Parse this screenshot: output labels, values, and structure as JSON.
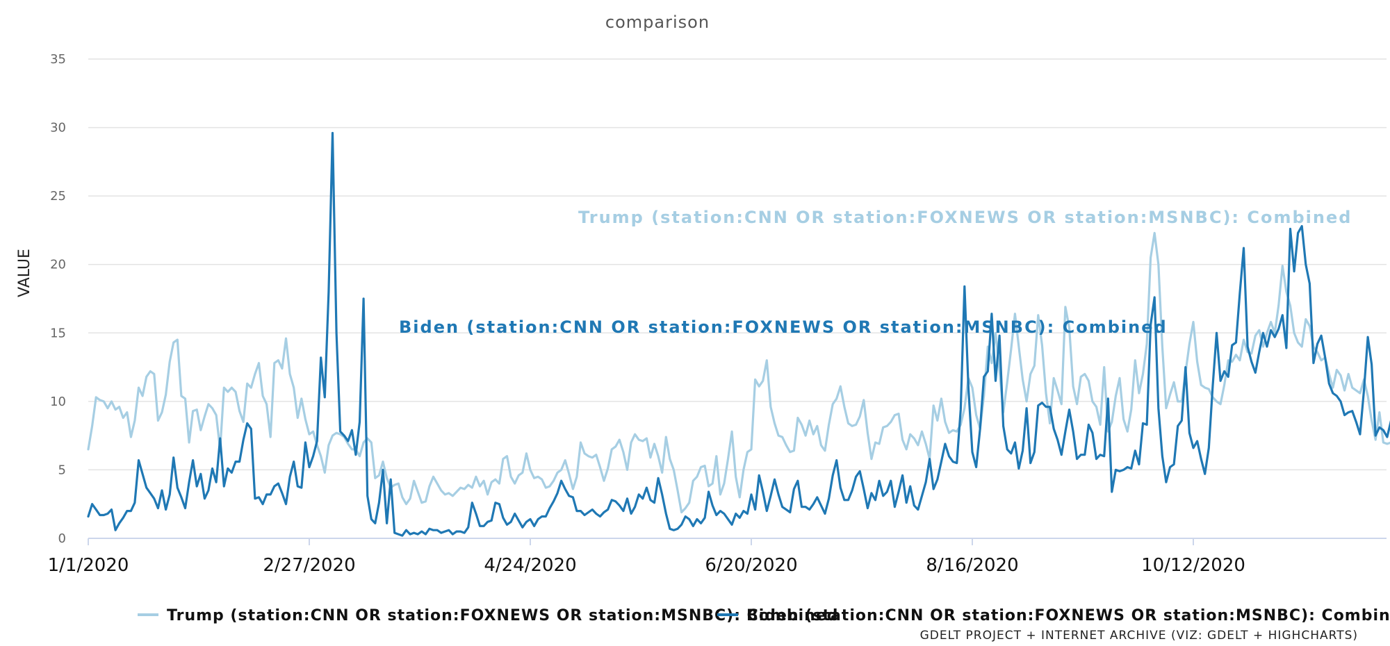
{
  "chart_data": {
    "type": "line",
    "title": "comparison",
    "xlabel": "",
    "ylabel": "VALUE",
    "ylim": [
      0,
      35
    ],
    "yticks": [
      "0",
      "5",
      "10",
      "15",
      "20",
      "25",
      "30",
      "35"
    ],
    "x_tick_labels": [
      "1/1/2020",
      "2/27/2020",
      "4/24/2020",
      "6/20/2020",
      "8/16/2020",
      "10/12/2020"
    ],
    "x_start": "1/1/2020",
    "x_step_days": 1,
    "legend_position": "bottom",
    "credits": "GDELT PROJECT + INTERNET ARCHIVE (VIZ: GDELT + HIGHCHARTS)",
    "series": [
      {
        "name": "Trump (station:CNN OR station:FOXNEWS OR station:MSNBC): Combined",
        "color": "#a6cee3",
        "annotation": "Trump (station:CNN OR station:FOXNEWS OR station:MSNBC): Combined",
        "values": [
          6.5,
          8.2,
          10.3,
          10.1,
          10.0,
          9.5,
          10.0,
          9.4,
          9.6,
          8.8,
          9.2,
          7.4,
          8.6,
          11.0,
          10.4,
          11.8,
          12.2,
          12.0,
          8.6,
          9.2,
          10.5,
          12.9,
          14.3,
          14.5,
          10.4,
          10.2,
          7.0,
          9.3,
          9.4,
          7.9,
          8.9,
          9.8,
          9.5,
          9.0,
          6.5,
          11.0,
          10.7,
          11.0,
          10.7,
          9.3,
          8.5,
          11.3,
          11.0,
          12.0,
          12.8,
          10.4,
          9.8,
          7.4,
          12.8,
          13.0,
          12.4,
          14.6,
          12.0,
          11.0,
          8.8,
          10.2,
          8.7,
          7.6,
          7.8,
          6.8,
          6.0,
          4.8,
          6.8,
          7.5,
          7.7,
          7.6,
          7.4,
          6.9,
          6.5,
          6.5,
          6.0,
          7.0,
          7.3,
          7.0,
          4.4,
          4.6,
          5.6,
          4.4,
          3.7,
          3.9,
          4.0,
          3.0,
          2.5,
          2.9,
          4.2,
          3.4,
          2.6,
          2.7,
          3.8,
          4.5,
          4.0,
          3.5,
          3.2,
          3.3,
          3.1,
          3.4,
          3.7,
          3.6,
          3.9,
          3.7,
          4.5,
          3.8,
          4.2,
          3.2,
          4.1,
          4.3,
          4.0,
          5.8,
          6.0,
          4.5,
          4.0,
          4.6,
          4.8,
          6.2,
          5.0,
          4.4,
          4.5,
          4.3,
          3.7,
          3.8,
          4.2,
          4.8,
          5.0,
          5.7,
          4.7,
          3.6,
          4.5,
          7.0,
          6.2,
          6.0,
          5.9,
          6.1,
          5.2,
          4.2,
          5.1,
          6.5,
          6.7,
          7.2,
          6.3,
          5.0,
          7.0,
          7.6,
          7.2,
          7.1,
          7.3,
          5.9,
          6.9,
          6.0,
          4.8,
          7.4,
          5.8,
          5.0,
          3.5,
          1.9,
          2.2,
          2.6,
          4.2,
          4.5,
          5.2,
          5.3,
          3.8,
          4.0,
          6.0,
          3.2,
          4.0,
          5.8,
          7.8,
          4.5,
          3.0,
          5.0,
          6.3,
          6.5,
          11.6,
          11.1,
          11.5,
          13.0,
          9.6,
          8.4,
          7.5,
          7.4,
          6.8,
          6.3,
          6.4,
          8.8,
          8.3,
          7.5,
          8.6,
          7.6,
          8.2,
          6.8,
          6.4,
          8.3,
          9.8,
          10.2,
          11.1,
          9.6,
          8.4,
          8.2,
          8.3,
          8.9,
          10.1,
          7.7,
          5.8,
          7.0,
          6.9,
          8.1,
          8.2,
          8.5,
          9.0,
          9.1,
          7.2,
          6.5,
          7.6,
          7.3,
          6.8,
          7.8,
          6.9,
          5.8,
          9.7,
          8.6,
          10.2,
          8.5,
          7.7,
          7.9,
          7.8,
          8.3,
          9.5,
          11.7,
          11.0,
          9.0,
          8.0,
          10.4,
          14.0,
          12.8,
          15.0,
          12.3,
          9.2,
          11.4,
          13.8,
          16.4,
          14.0,
          11.6,
          10.0,
          12.0,
          12.6,
          16.3,
          14.1,
          10.6,
          8.4,
          11.7,
          10.8,
          9.8,
          16.9,
          15.4,
          11.1,
          9.8,
          11.8,
          12.0,
          11.5,
          10.0,
          9.6,
          8.3,
          12.5,
          7.8,
          8.5,
          10.4,
          11.7,
          8.7,
          7.8,
          9.4,
          13.0,
          10.6,
          12.0,
          14.2,
          20.5,
          22.3,
          20.0,
          14.0,
          9.5,
          10.5,
          11.4,
          10.0,
          10.0,
          12.1,
          14.2,
          15.8,
          12.9,
          11.2,
          11.0,
          10.9,
          10.3,
          10.0,
          9.8,
          11.2,
          13.0,
          12.9,
          13.4,
          13.0,
          14.5,
          13.6,
          13.5,
          14.8,
          15.2,
          14.0,
          15.0,
          15.8,
          15.0,
          17.0,
          19.9,
          18.0,
          17.0,
          15.0,
          14.3,
          14.0,
          16.0,
          15.5,
          14.0,
          13.6,
          13.0,
          13.2,
          12.0,
          11.0,
          12.3,
          11.9,
          10.8,
          12.0,
          11.0,
          10.8,
          10.6,
          11.6,
          10.4,
          8.6,
          7.2,
          9.2,
          7.0,
          6.9,
          7.0
        ]
      },
      {
        "name": "Biden (station:CNN OR station:FOXNEWS OR station:MSNBC): Combined",
        "color": "#1f78b4",
        "annotation": "Biden (station:CNN OR station:FOXNEWS OR station:MSNBC): Combined",
        "values": [
          1.6,
          2.5,
          2.1,
          1.7,
          1.7,
          1.8,
          2.1,
          0.6,
          1.1,
          1.5,
          2.0,
          2.0,
          2.6,
          5.7,
          4.7,
          3.7,
          3.3,
          2.9,
          2.2,
          3.5,
          2.1,
          3.2,
          5.9,
          3.7,
          3.0,
          2.2,
          4.1,
          5.7,
          3.8,
          4.7,
          2.9,
          3.5,
          5.1,
          4.1,
          7.3,
          3.8,
          5.1,
          4.8,
          5.6,
          5.6,
          7.2,
          8.4,
          8.0,
          2.9,
          3.0,
          2.5,
          3.2,
          3.2,
          3.8,
          4.0,
          3.3,
          2.5,
          4.5,
          5.6,
          3.8,
          3.7,
          7.0,
          5.2,
          6.0,
          7.1,
          13.2,
          10.3,
          18.0,
          29.6,
          15.0,
          7.8,
          7.5,
          7.1,
          7.9,
          6.1,
          8.5,
          17.5,
          3.1,
          1.4,
          1.1,
          2.6,
          5.0,
          1.1,
          4.3,
          0.4,
          0.3,
          0.2,
          0.6,
          0.3,
          0.4,
          0.3,
          0.5,
          0.3,
          0.7,
          0.6,
          0.6,
          0.4,
          0.5,
          0.6,
          0.3,
          0.5,
          0.5,
          0.4,
          0.8,
          2.6,
          1.8,
          0.9,
          0.9,
          1.2,
          1.3,
          2.6,
          2.5,
          1.5,
          1.0,
          1.2,
          1.8,
          1.3,
          0.8,
          1.2,
          1.4,
          0.9,
          1.4,
          1.6,
          1.6,
          2.2,
          2.7,
          3.3,
          4.2,
          3.6,
          3.1,
          3.0,
          2.0,
          2.0,
          1.7,
          1.9,
          2.1,
          1.8,
          1.6,
          1.9,
          2.1,
          2.8,
          2.7,
          2.4,
          2.0,
          2.9,
          1.8,
          2.3,
          3.2,
          2.9,
          3.7,
          2.8,
          2.6,
          4.4,
          3.2,
          1.8,
          0.7,
          0.6,
          0.7,
          1.0,
          1.6,
          1.4,
          0.9,
          1.4,
          1.1,
          1.5,
          3.4,
          2.4,
          1.7,
          2.0,
          1.8,
          1.4,
          1.0,
          1.8,
          1.5,
          2.0,
          1.8,
          3.2,
          2.1,
          4.6,
          3.4,
          2.0,
          3.1,
          4.3,
          3.2,
          2.3,
          2.1,
          1.9,
          3.6,
          4.2,
          2.3,
          2.3,
          2.1,
          2.5,
          3.0,
          2.4,
          1.8,
          2.9,
          4.6,
          5.7,
          3.7,
          2.8,
          2.8,
          3.5,
          4.5,
          4.9,
          3.6,
          2.2,
          3.3,
          2.8,
          4.2,
          3.1,
          3.4,
          4.2,
          2.3,
          3.4,
          4.6,
          2.6,
          3.8,
          2.4,
          2.1,
          3.1,
          4.1,
          5.8,
          3.6,
          4.3,
          5.6,
          6.9,
          6.0,
          5.6,
          5.5,
          9.4,
          18.4,
          11.0,
          6.3,
          5.2,
          8.0,
          11.8,
          12.2,
          16.4,
          11.5,
          14.8,
          8.2,
          6.5,
          6.2,
          7.0,
          5.1,
          6.4,
          9.5,
          5.5,
          6.3,
          9.7,
          9.9,
          9.6,
          9.6,
          8.0,
          7.2,
          6.1,
          7.8,
          9.4,
          7.8,
          5.8,
          6.1,
          6.1,
          8.3,
          7.7,
          5.8,
          6.1,
          6.0,
          10.2,
          3.4,
          5.0,
          4.9,
          5.0,
          5.2,
          5.1,
          6.4,
          5.4,
          8.4,
          8.3,
          15.6,
          17.6,
          9.5,
          6.0,
          4.1,
          5.2,
          5.4,
          8.2,
          8.6,
          12.5,
          7.7,
          6.6,
          7.1,
          5.8,
          4.7,
          6.6,
          11.1,
          15.0,
          11.5,
          12.2,
          11.8,
          14.1,
          14.3,
          17.9,
          21.2,
          14.0,
          12.9,
          12.1,
          13.6,
          15.0,
          14.0,
          15.2,
          14.7,
          15.3,
          16.3,
          13.9,
          22.6,
          19.5,
          22.3,
          22.8,
          20.0,
          18.6,
          12.8,
          14.2,
          14.8,
          13.2,
          11.3,
          10.6,
          10.4,
          10.0,
          9.0,
          9.2,
          9.3,
          8.5,
          7.6,
          10.8,
          14.7,
          12.7,
          7.5,
          8.1,
          7.9,
          7.4,
          8.6
        ]
      }
    ]
  }
}
